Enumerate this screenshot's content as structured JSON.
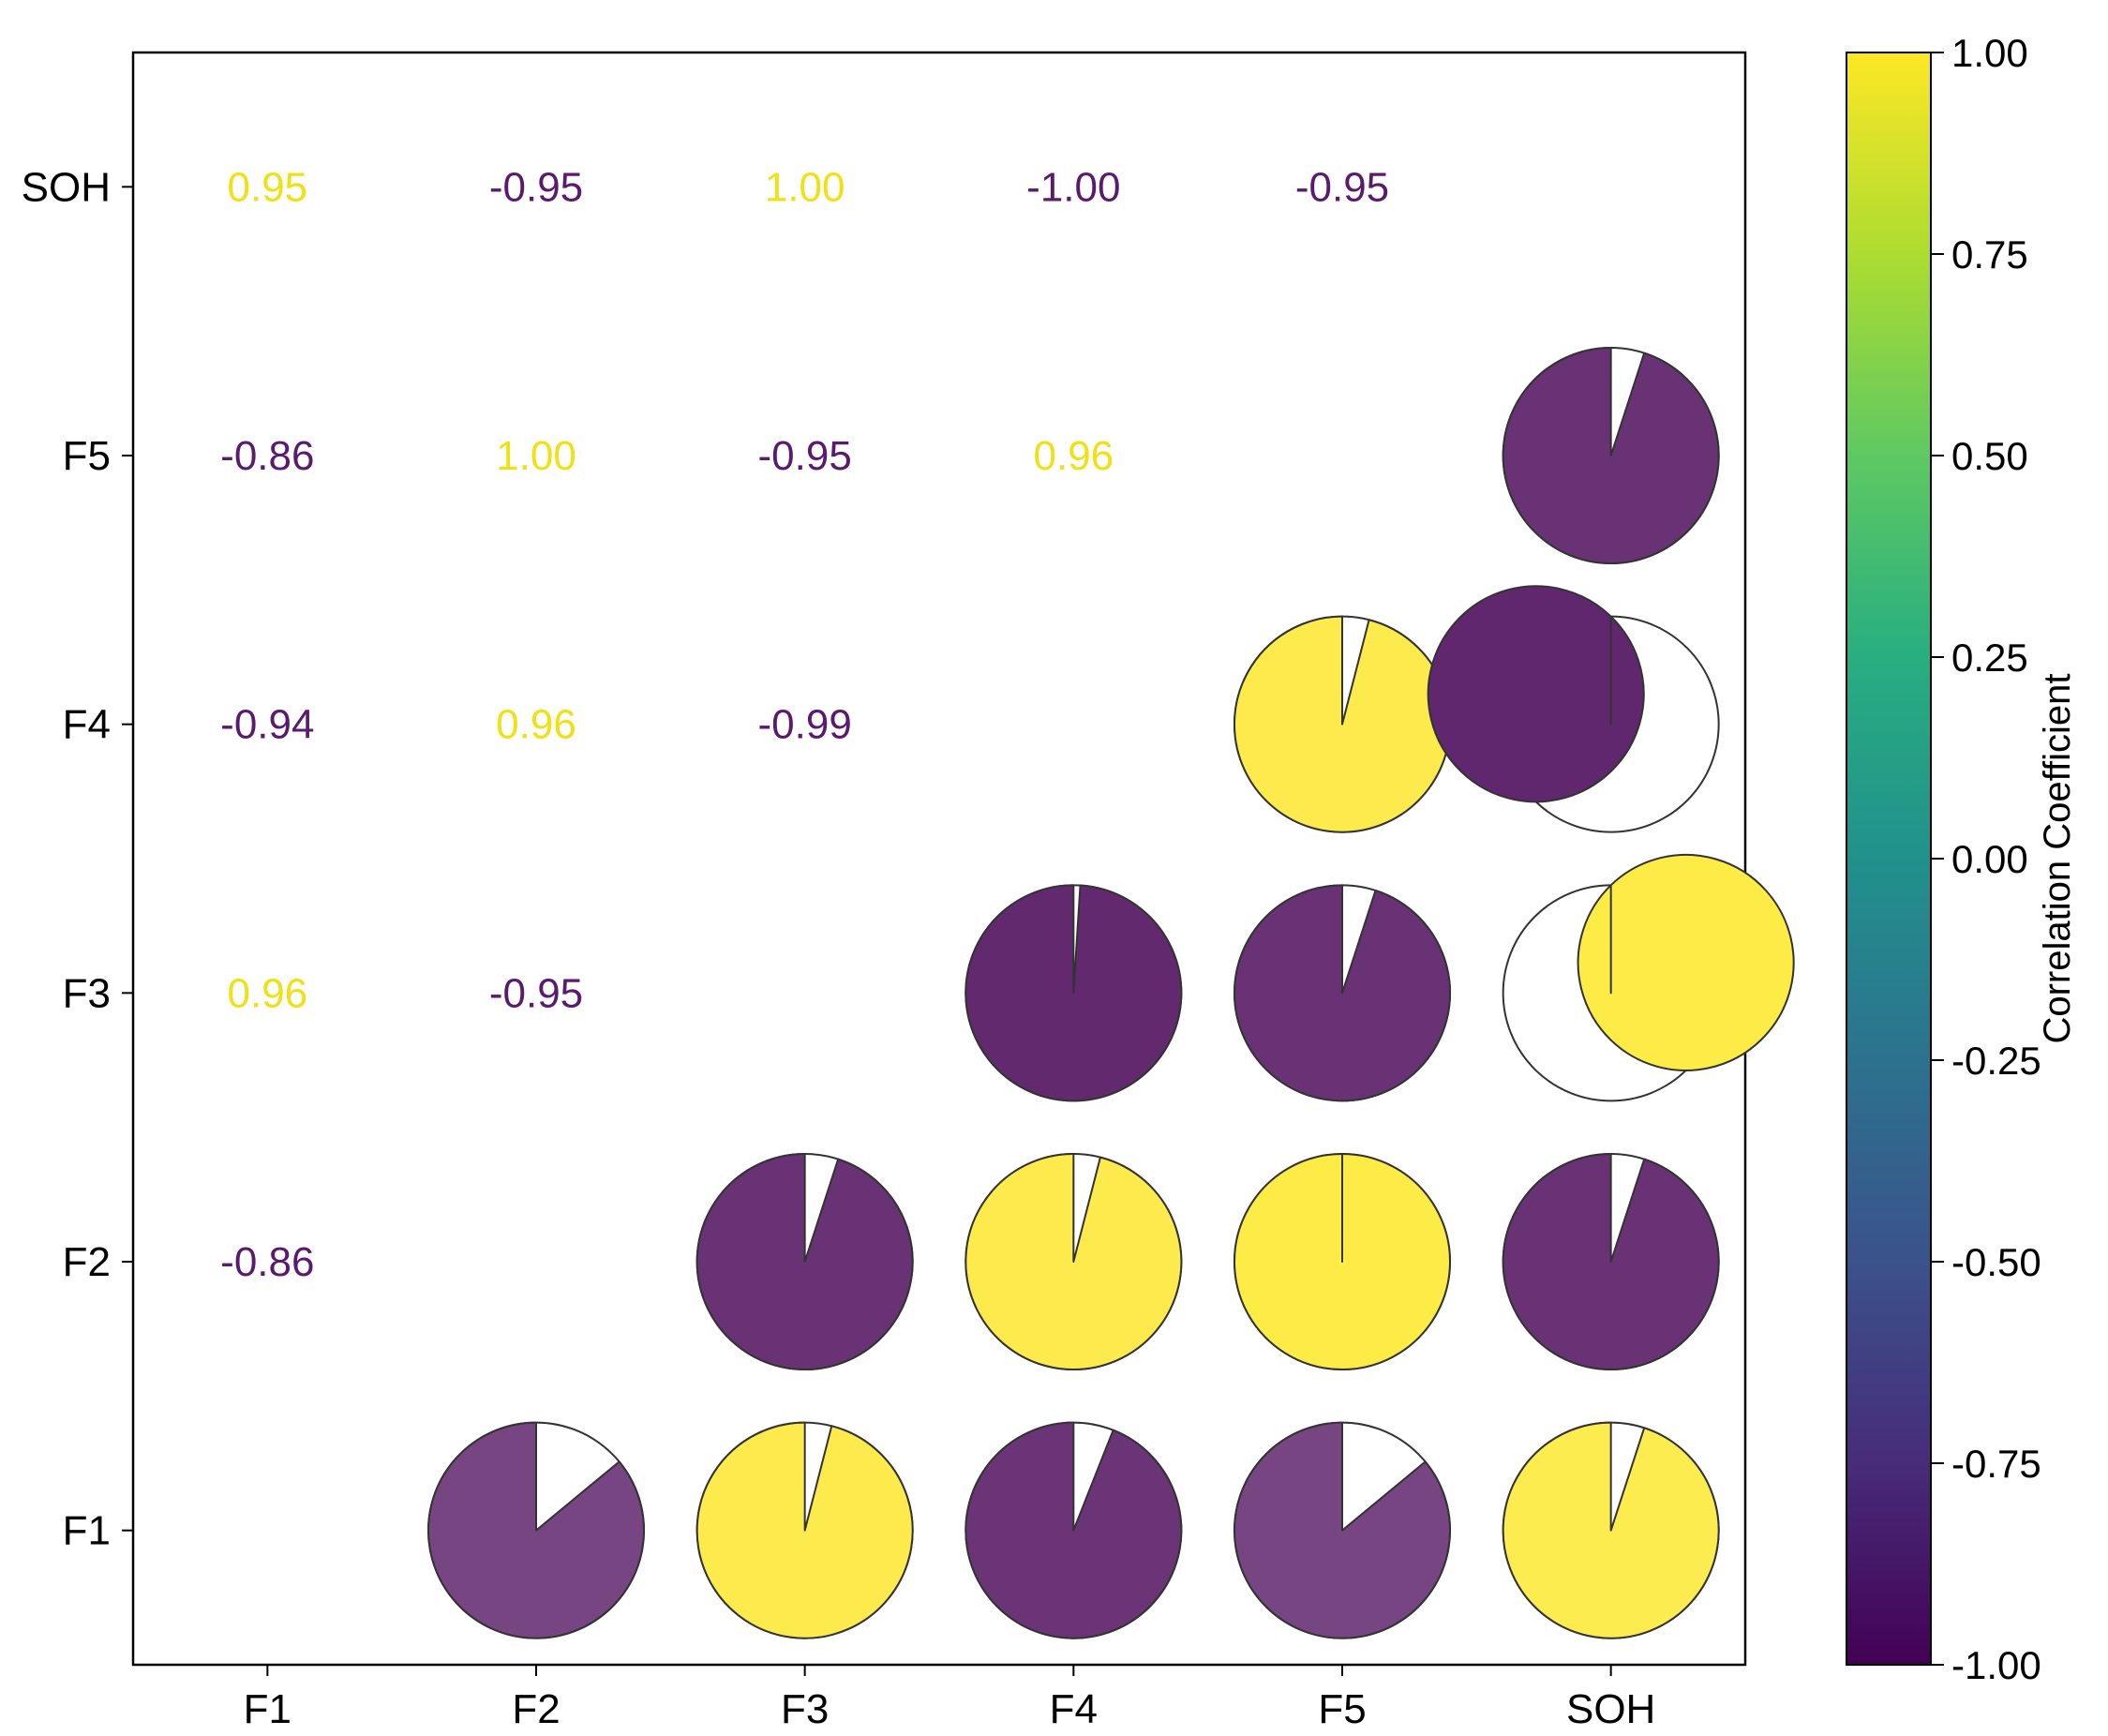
{
  "chart_data": {
    "type": "heatmap",
    "subtype": "correlation-pie-matrix",
    "variables": [
      "F1",
      "F2",
      "F3",
      "F4",
      "F5",
      "SOH"
    ],
    "x_labels": [
      "F1",
      "F2",
      "F3",
      "F4",
      "F5",
      "SOH"
    ],
    "y_labels": [
      "SOH",
      "F5",
      "F4",
      "F3",
      "F2",
      "F1"
    ],
    "text_cells": [
      {
        "row": "SOH",
        "col": "F1",
        "value": 0.95,
        "label": "0.95"
      },
      {
        "row": "SOH",
        "col": "F2",
        "value": -0.95,
        "label": "-0.95"
      },
      {
        "row": "SOH",
        "col": "F3",
        "value": 1.0,
        "label": "1.00"
      },
      {
        "row": "SOH",
        "col": "F4",
        "value": -1.0,
        "label": "-1.00"
      },
      {
        "row": "SOH",
        "col": "F5",
        "value": -0.95,
        "label": "-0.95"
      },
      {
        "row": "F5",
        "col": "F1",
        "value": -0.86,
        "label": "-0.86"
      },
      {
        "row": "F5",
        "col": "F2",
        "value": 1.0,
        "label": "1.00"
      },
      {
        "row": "F5",
        "col": "F3",
        "value": -0.95,
        "label": "-0.95"
      },
      {
        "row": "F5",
        "col": "F4",
        "value": 0.96,
        "label": "0.96"
      },
      {
        "row": "F4",
        "col": "F1",
        "value": -0.94,
        "label": "-0.94"
      },
      {
        "row": "F4",
        "col": "F2",
        "value": 0.96,
        "label": "0.96"
      },
      {
        "row": "F4",
        "col": "F3",
        "value": -0.99,
        "label": "-0.99"
      },
      {
        "row": "F3",
        "col": "F1",
        "value": 0.96,
        "label": "0.96"
      },
      {
        "row": "F3",
        "col": "F2",
        "value": -0.95,
        "label": "-0.95"
      },
      {
        "row": "F2",
        "col": "F1",
        "value": -0.86,
        "label": "-0.86"
      }
    ],
    "pie_cells": [
      {
        "row": "F5",
        "col": "SOH",
        "value": -0.95
      },
      {
        "row": "F4",
        "col": "F5",
        "value": 0.96
      },
      {
        "row": "F4",
        "col": "SOH",
        "value": -1.0
      },
      {
        "row": "F3",
        "col": "F4",
        "value": -0.99
      },
      {
        "row": "F3",
        "col": "F5",
        "value": -0.95
      },
      {
        "row": "F3",
        "col": "SOH",
        "value": 1.0
      },
      {
        "row": "F2",
        "col": "F3",
        "value": -0.95
      },
      {
        "row": "F2",
        "col": "F4",
        "value": 0.96
      },
      {
        "row": "F2",
        "col": "F5",
        "value": 1.0
      },
      {
        "row": "F2",
        "col": "SOH",
        "value": -0.95
      },
      {
        "row": "F1",
        "col": "F2",
        "value": -0.86
      },
      {
        "row": "F1",
        "col": "F3",
        "value": 0.96
      },
      {
        "row": "F1",
        "col": "F4",
        "value": -0.94
      },
      {
        "row": "F1",
        "col": "F5",
        "value": -0.86
      },
      {
        "row": "F1",
        "col": "SOH",
        "value": 0.95
      }
    ],
    "colorbar": {
      "label": "Correlation Coefficient",
      "colormap": "viridis",
      "range": [
        -1.0,
        1.0
      ],
      "ticks": [
        1.0,
        0.75,
        0.5,
        0.25,
        0.0,
        -0.25,
        -0.5,
        -0.75,
        -1.0
      ],
      "tick_labels": [
        "1.00",
        "0.75",
        "0.50",
        "0.25",
        "0.00",
        "-0.25",
        "-0.50",
        "-0.75",
        "-1.00"
      ]
    },
    "colors": {
      "positive": "#fde725",
      "negative": "#440154",
      "pie_gap": "#ffffff",
      "outline": "#333333"
    }
  }
}
